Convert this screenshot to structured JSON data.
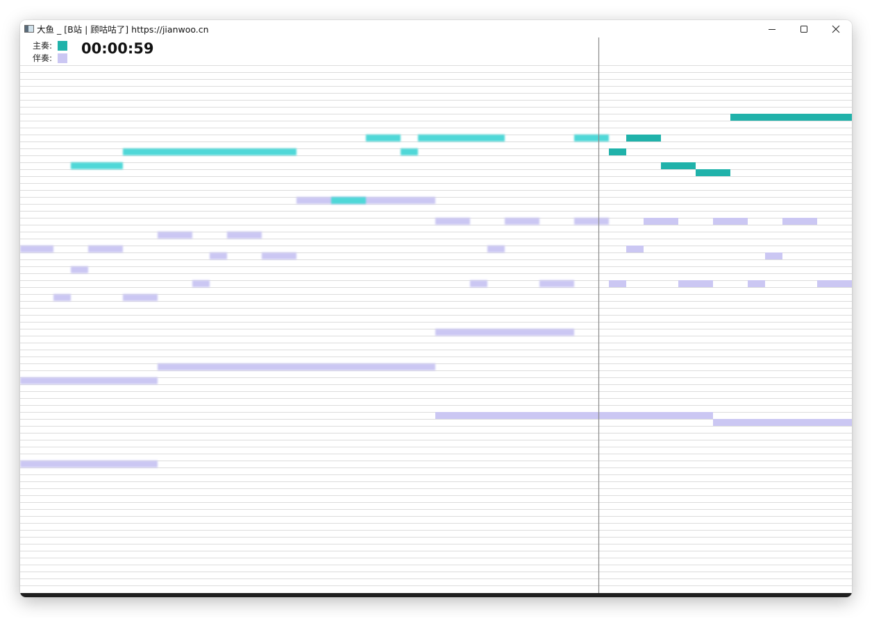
{
  "window": {
    "title": "大鱼 _ [B站 | 顾咕咕了] https://jianwoo.cn"
  },
  "legend": {
    "main_label": "主奏:",
    "main_color": "#20b2aa",
    "accomp_label": "伴奏:",
    "accomp_color": "#cbc7f3"
  },
  "timer": "00:00:59",
  "colors": {
    "main_played": "#4fd8d8",
    "main_upcoming": "#20b2aa",
    "accomp": "#cbc7f3",
    "grid_line": "#dcdcdc",
    "playhead": "#8a8a8a"
  },
  "playhead": {
    "time": 833
  },
  "notes": [
    {
      "track": "main",
      "start": 1023,
      "end": 1198,
      "pitch": 7
    },
    {
      "track": "main",
      "start": 498,
      "end": 548,
      "pitch": 10
    },
    {
      "track": "main",
      "start": 573,
      "end": 698,
      "pitch": 10
    },
    {
      "track": "main",
      "start": 798,
      "end": 848,
      "pitch": 10
    },
    {
      "track": "main",
      "start": 873,
      "end": 923,
      "pitch": 10
    },
    {
      "track": "main",
      "start": 148,
      "end": 398,
      "pitch": 12
    },
    {
      "track": "main",
      "start": 548,
      "end": 573,
      "pitch": 12
    },
    {
      "track": "main",
      "start": 848,
      "end": 873,
      "pitch": 12
    },
    {
      "track": "main",
      "start": 73,
      "end": 148,
      "pitch": 14
    },
    {
      "track": "main",
      "start": 923,
      "end": 973,
      "pitch": 14
    },
    {
      "track": "main",
      "start": 973,
      "end": 1023,
      "pitch": 15
    },
    {
      "track": "main",
      "start": 448,
      "end": 498,
      "pitch": 19
    },
    {
      "track": "accomp",
      "start": 398,
      "end": 598,
      "pitch": 19
    },
    {
      "track": "accomp",
      "start": 598,
      "end": 648,
      "pitch": 22
    },
    {
      "track": "accomp",
      "start": 698,
      "end": 748,
      "pitch": 22
    },
    {
      "track": "accomp",
      "start": 798,
      "end": 848,
      "pitch": 22
    },
    {
      "track": "accomp",
      "start": 898,
      "end": 948,
      "pitch": 22
    },
    {
      "track": "accomp",
      "start": 998,
      "end": 1048,
      "pitch": 22
    },
    {
      "track": "accomp",
      "start": 1098,
      "end": 1148,
      "pitch": 22
    },
    {
      "track": "accomp",
      "start": 198,
      "end": 248,
      "pitch": 24
    },
    {
      "track": "accomp",
      "start": 298,
      "end": 348,
      "pitch": 24
    },
    {
      "track": "accomp",
      "start": 0,
      "end": 48,
      "pitch": 26
    },
    {
      "track": "accomp",
      "start": 98,
      "end": 148,
      "pitch": 26
    },
    {
      "track": "accomp",
      "start": 673,
      "end": 698,
      "pitch": 26
    },
    {
      "track": "accomp",
      "start": 873,
      "end": 898,
      "pitch": 26
    },
    {
      "track": "accomp",
      "start": 273,
      "end": 298,
      "pitch": 27
    },
    {
      "track": "accomp",
      "start": 348,
      "end": 398,
      "pitch": 27
    },
    {
      "track": "accomp",
      "start": 1073,
      "end": 1098,
      "pitch": 27
    },
    {
      "track": "accomp",
      "start": 73,
      "end": 98,
      "pitch": 29
    },
    {
      "track": "accomp",
      "start": 248,
      "end": 273,
      "pitch": 31
    },
    {
      "track": "accomp",
      "start": 648,
      "end": 673,
      "pitch": 31
    },
    {
      "track": "accomp",
      "start": 748,
      "end": 798,
      "pitch": 31
    },
    {
      "track": "accomp",
      "start": 848,
      "end": 873,
      "pitch": 31
    },
    {
      "track": "accomp",
      "start": 948,
      "end": 998,
      "pitch": 31
    },
    {
      "track": "accomp",
      "start": 1048,
      "end": 1073,
      "pitch": 31
    },
    {
      "track": "accomp",
      "start": 1148,
      "end": 1198,
      "pitch": 31
    },
    {
      "track": "accomp",
      "start": 48,
      "end": 73,
      "pitch": 33
    },
    {
      "track": "accomp",
      "start": 148,
      "end": 198,
      "pitch": 33
    },
    {
      "track": "accomp",
      "start": 598,
      "end": 798,
      "pitch": 38
    },
    {
      "track": "accomp",
      "start": 198,
      "end": 598,
      "pitch": 43
    },
    {
      "track": "accomp",
      "start": 0,
      "end": 198,
      "pitch": 45
    },
    {
      "track": "accomp",
      "start": 598,
      "end": 998,
      "pitch": 50
    },
    {
      "track": "accomp",
      "start": 998,
      "end": 1198,
      "pitch": 51
    },
    {
      "track": "accomp",
      "start": 0,
      "end": 198,
      "pitch": 57
    }
  ]
}
